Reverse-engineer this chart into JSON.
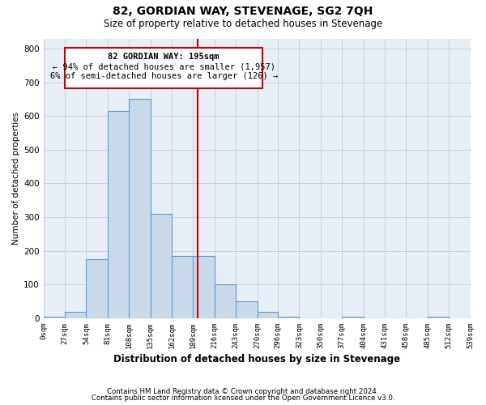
{
  "title": "82, GORDIAN WAY, STEVENAGE, SG2 7QH",
  "subtitle": "Size of property relative to detached houses in Stevenage",
  "xlabel": "Distribution of detached houses by size in Stevenage",
  "ylabel": "Number of detached properties",
  "footnote1": "Contains HM Land Registry data © Crown copyright and database right 2024.",
  "footnote2": "Contains public sector information licensed under the Open Government Licence v3.0.",
  "bar_color": "#c8daea",
  "bar_edge_color": "#5b9bd5",
  "grid_color": "#c8d0de",
  "vline_x": 195,
  "vline_color": "#cc0000",
  "annotation_title": "82 GORDIAN WAY: 195sqm",
  "annotation_line1": "← 94% of detached houses are smaller (1,957)",
  "annotation_line2": "6% of semi-detached houses are larger (126) →",
  "annotation_box_color": "#cc0000",
  "bin_edges": [
    0,
    27,
    54,
    81,
    108,
    135,
    162,
    189,
    216,
    243,
    270,
    296,
    323,
    350,
    377,
    404,
    431,
    458,
    485,
    512,
    539
  ],
  "bin_values": [
    5,
    20,
    175,
    615,
    650,
    310,
    185,
    185,
    100,
    50,
    20,
    5,
    0,
    0,
    5,
    0,
    0,
    0,
    5,
    0
  ],
  "ylim": [
    0,
    830
  ],
  "yticks": [
    0,
    100,
    200,
    300,
    400,
    500,
    600,
    700,
    800
  ],
  "background_color": "#e8eef5"
}
